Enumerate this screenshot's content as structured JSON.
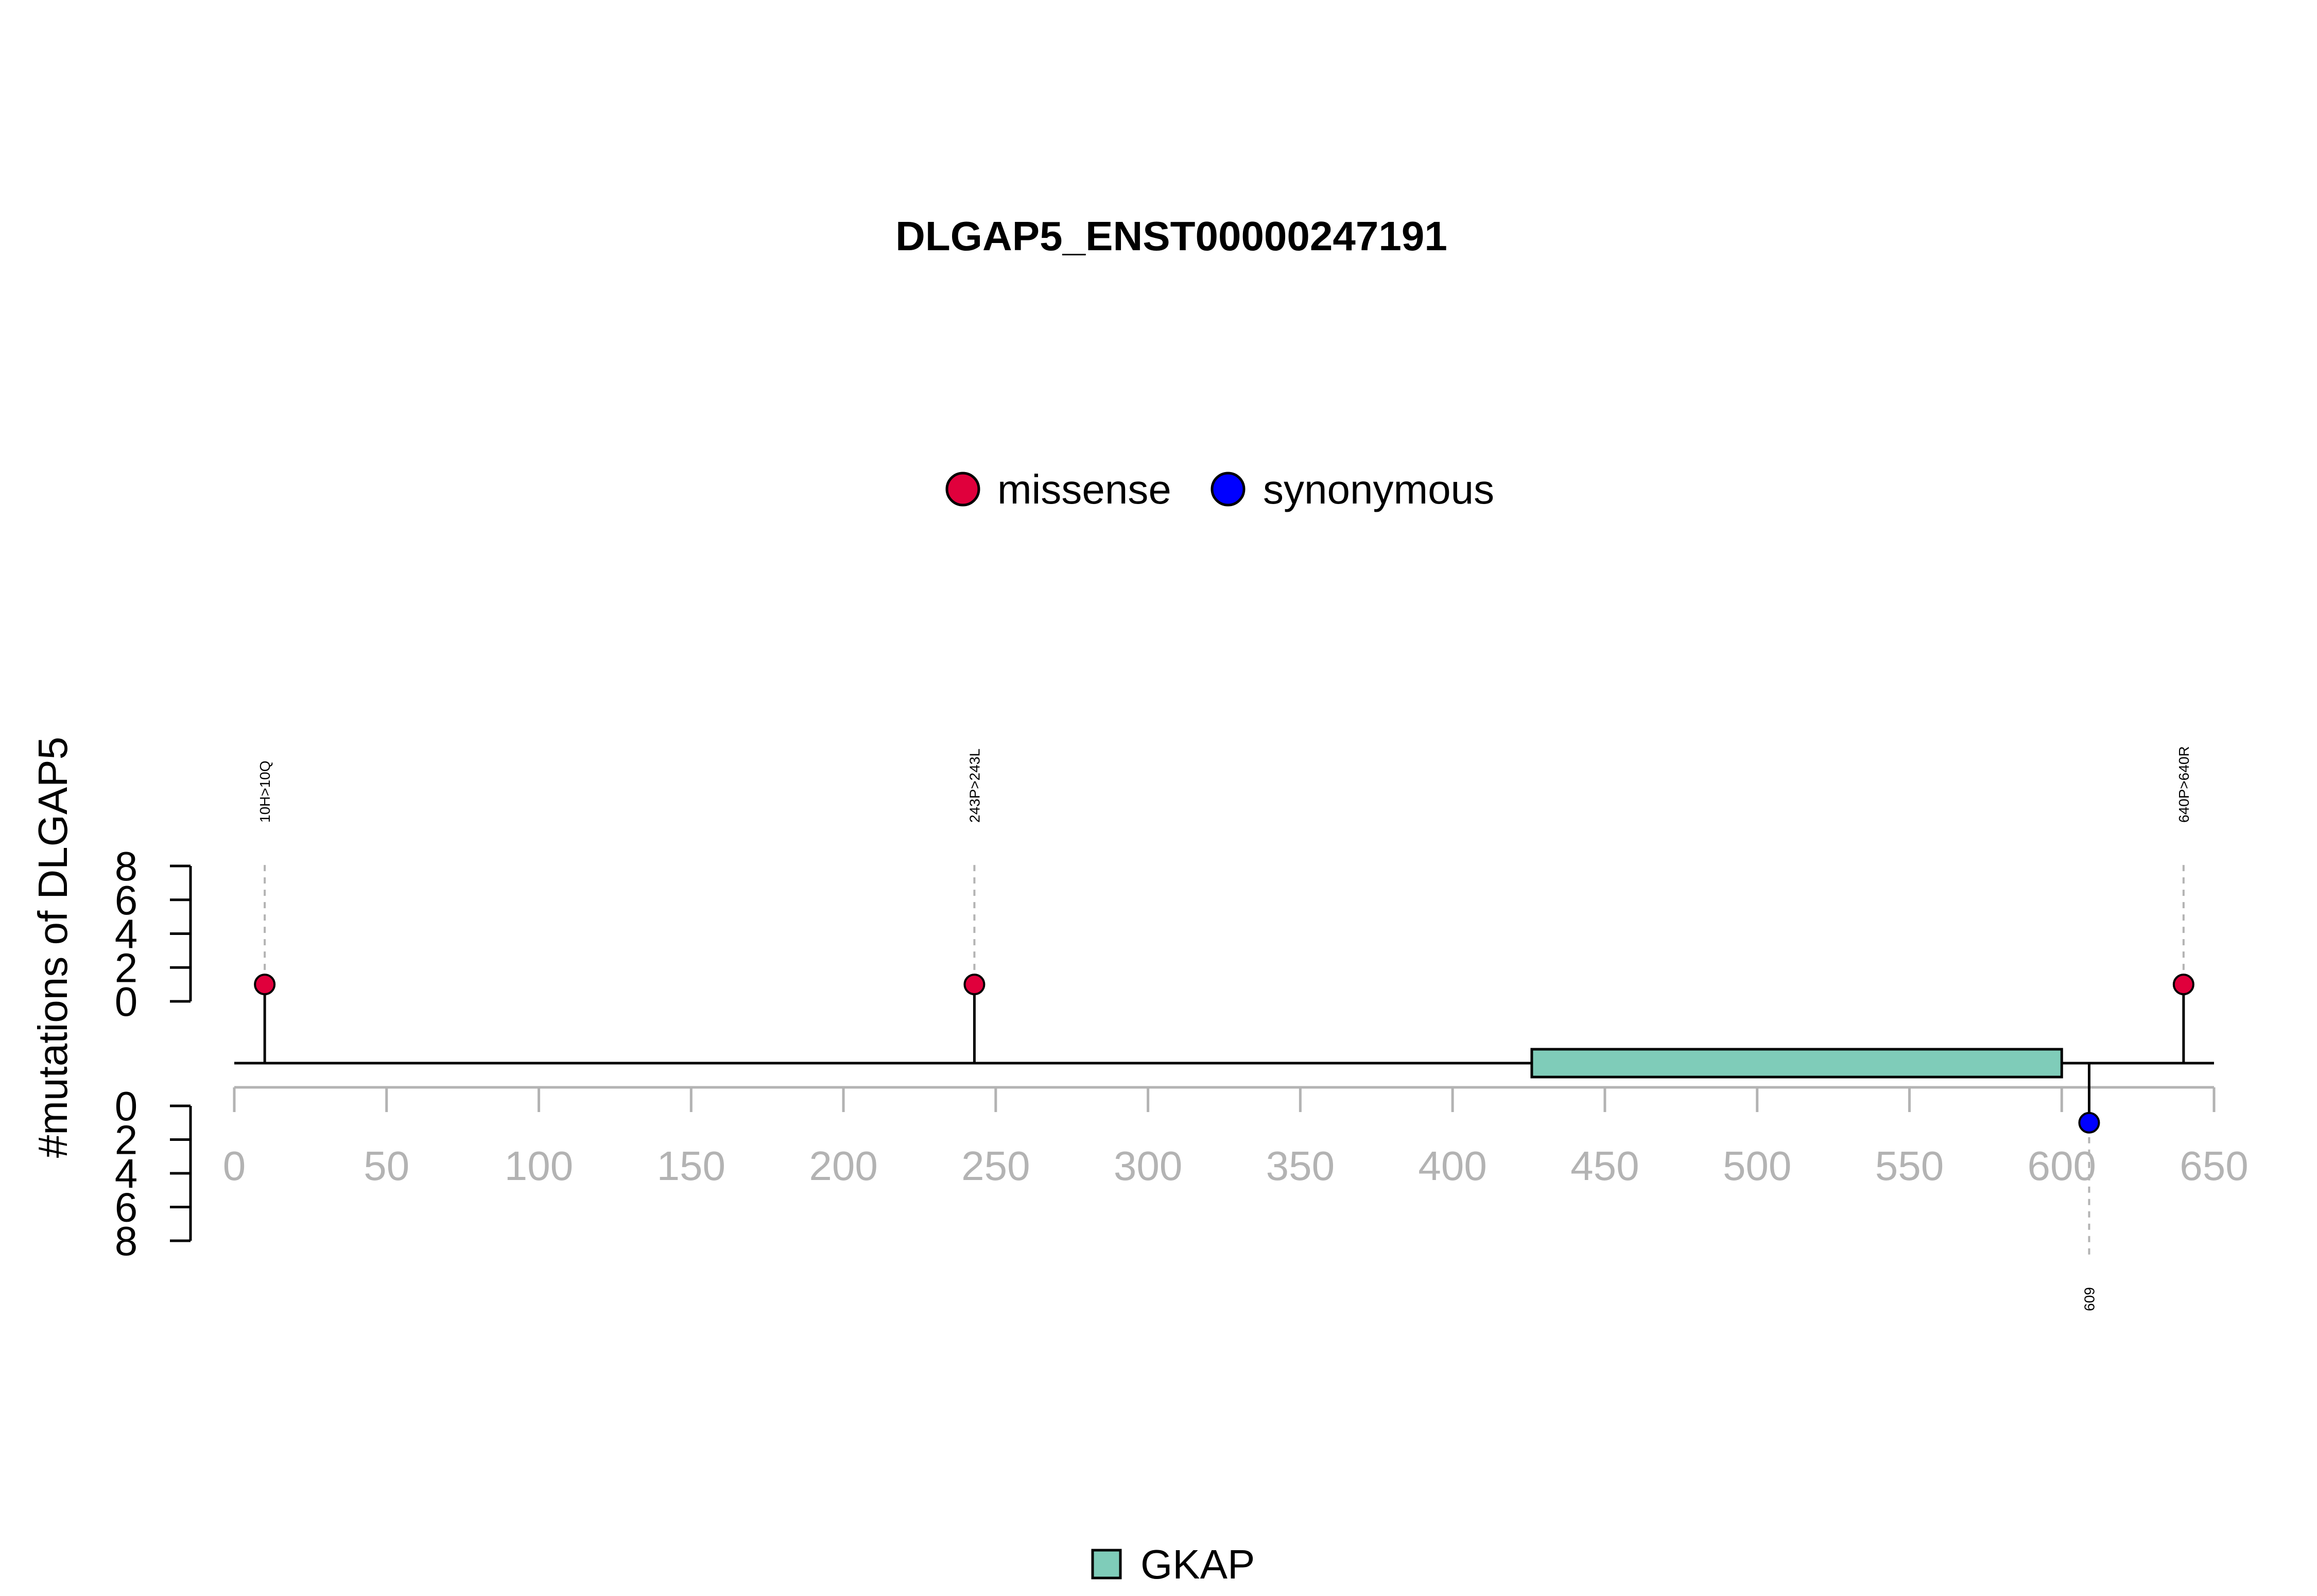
{
  "chart_data": {
    "type": "lollipop",
    "title": "DLGAP5_ENST00000247191",
    "ylabel": "#mutations of DLGAP5",
    "xlim": [
      0,
      650
    ],
    "x_ticks": [
      0,
      50,
      100,
      150,
      200,
      250,
      300,
      350,
      400,
      450,
      500,
      550,
      600,
      650
    ],
    "upper_y_ticks": [
      0,
      2,
      4,
      6,
      8
    ],
    "lower_y_ticks": [
      0,
      2,
      4,
      6,
      8
    ],
    "ylim": [
      0,
      8
    ],
    "legend": {
      "placement": "top-center",
      "entries": [
        {
          "name": "missense",
          "color": "#e0003c"
        },
        {
          "name": "synonymous",
          "color": "#0000ff"
        }
      ]
    },
    "domain_legend": {
      "placement": "bottom-center",
      "entries": [
        {
          "name": "GKAP",
          "color": "#7fccb9"
        }
      ]
    },
    "mutations": [
      {
        "position": 10,
        "count": 1,
        "label": "10H>10Q",
        "type": "missense",
        "side": "upper"
      },
      {
        "position": 243,
        "count": 1,
        "label": "243P>243L",
        "type": "missense",
        "side": "upper"
      },
      {
        "position": 640,
        "count": 1,
        "label": "640P>640R",
        "type": "missense",
        "side": "upper"
      },
      {
        "position": 609,
        "count": 1,
        "label": "609",
        "type": "synonymous",
        "side": "lower"
      }
    ],
    "domains": [
      {
        "name": "GKAP",
        "start": 426,
        "end": 600,
        "color": "#7fccb9"
      }
    ]
  }
}
